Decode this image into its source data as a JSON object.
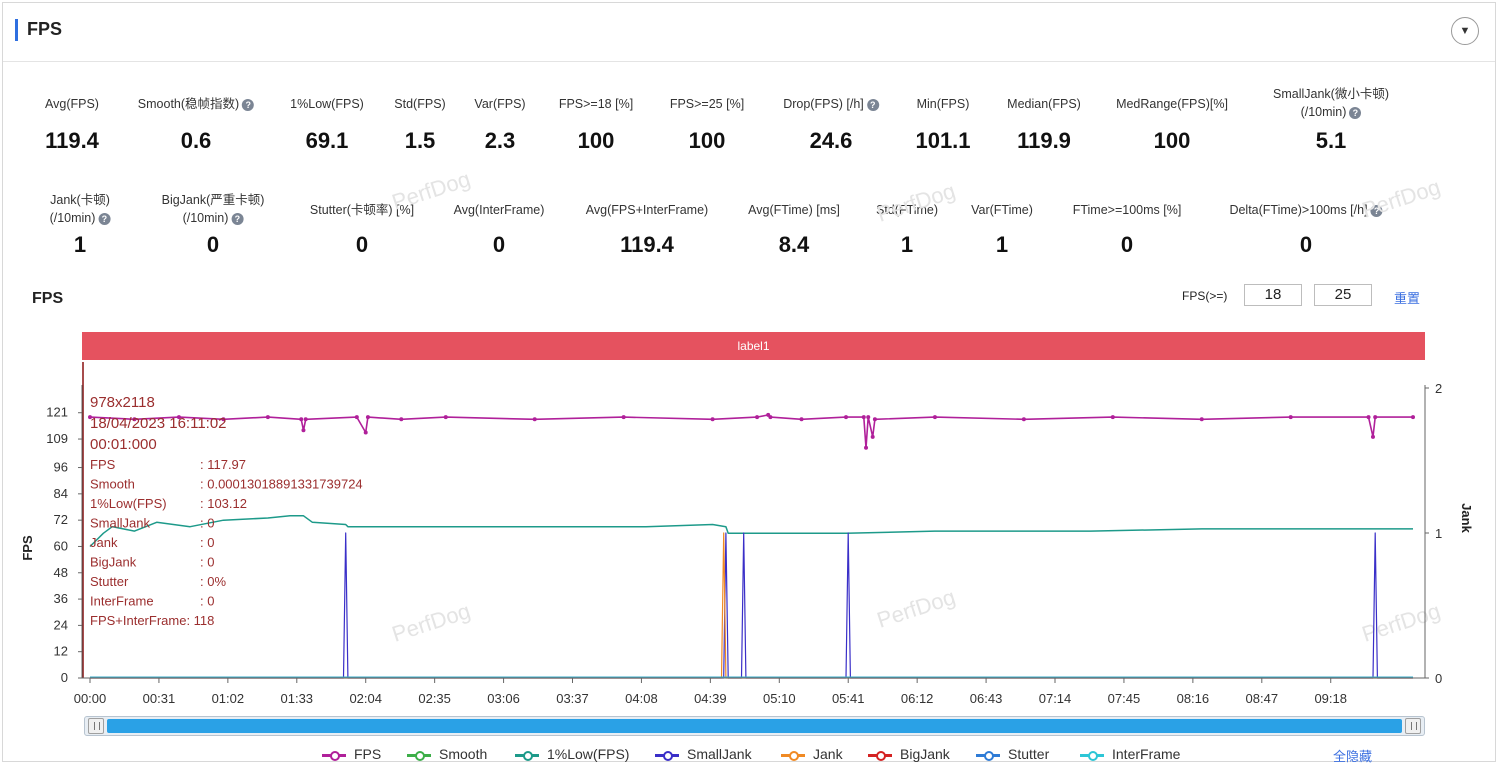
{
  "panel": {
    "title": "FPS",
    "collapse_icon": "▼"
  },
  "metrics_row1": [
    {
      "label": "Avg(FPS)",
      "value": "119.4",
      "help": false
    },
    {
      "label": "Smooth(稳帧指数)",
      "value": "0.6",
      "help": true
    },
    {
      "label": "1%Low(FPS)",
      "value": "69.1",
      "help": false
    },
    {
      "label": "Std(FPS)",
      "value": "1.5",
      "help": false
    },
    {
      "label": "Var(FPS)",
      "value": "2.3",
      "help": false
    },
    {
      "label": "FPS>=18 [%]",
      "value": "100",
      "help": false
    },
    {
      "label": "FPS>=25 [%]",
      "value": "100",
      "help": false
    },
    {
      "label": "Drop(FPS) [/h]",
      "value": "24.6",
      "help": true
    },
    {
      "label": "Min(FPS)",
      "value": "101.1",
      "help": false
    },
    {
      "label": "Median(FPS)",
      "value": "119.9",
      "help": false
    },
    {
      "label": "MedRange(FPS)[%]",
      "value": "100",
      "help": false
    },
    {
      "label": "SmallJank(微小卡顿)",
      "label2": "(/10min)",
      "value": "5.1",
      "help": true
    }
  ],
  "metrics_row2": [
    {
      "label": "Jank(卡顿)",
      "label2": "(/10min)",
      "value": "1",
      "help": true
    },
    {
      "label": "BigJank(严重卡顿)",
      "label2": "(/10min)",
      "value": "0",
      "help": true
    },
    {
      "label": "Stutter(卡顿率) [%]",
      "value": "0",
      "help": false
    },
    {
      "label": "Avg(InterFrame)",
      "value": "0",
      "help": false
    },
    {
      "label": "Avg(FPS+InterFrame)",
      "value": "119.4",
      "help": false
    },
    {
      "label": "Avg(FTime) [ms]",
      "value": "8.4",
      "help": false
    },
    {
      "label": "Std(FTime)",
      "value": "1",
      "help": false
    },
    {
      "label": "Var(FTime)",
      "value": "1",
      "help": false
    },
    {
      "label": "FTime>=100ms [%]",
      "value": "0",
      "help": false
    },
    {
      "label": "Delta(FTime)>100ms [/h]",
      "value": "0",
      "help": true
    }
  ],
  "chart_header": {
    "title": "FPS",
    "threshold_label": "FPS(>=)",
    "threshold_1": "18",
    "threshold_2": "25",
    "reset_label": "重置"
  },
  "label_band": "label1",
  "watermark": "PerfDog",
  "tooltip": {
    "resolution": "978x2118",
    "date": "18/04/2023 16:11:02",
    "elapsed": "00:01:000",
    "rows": [
      {
        "k": "FPS",
        "v": ": 117.97"
      },
      {
        "k": "Smooth",
        "v": ": 0.00013018891331739724"
      },
      {
        "k": "1%Low(FPS)",
        "v": ": 103.12"
      },
      {
        "k": "SmallJank",
        "v": ": 0"
      },
      {
        "k": "Jank",
        "v": ": 0"
      },
      {
        "k": "BigJank",
        "v": ": 0"
      },
      {
        "k": "Stutter",
        "v": ": 0%"
      },
      {
        "k": "InterFrame",
        "v": ": 0"
      }
    ],
    "last_row": "FPS+InterFrame: 118"
  },
  "legend": [
    {
      "name": "FPS",
      "color": "#b0209a"
    },
    {
      "name": "Smooth",
      "color": "#3cae48"
    },
    {
      "name": "1%Low(FPS)",
      "color": "#1d9a8a"
    },
    {
      "name": "SmallJank",
      "color": "#3a2fc8"
    },
    {
      "name": "Jank",
      "color": "#f08a24"
    },
    {
      "name": "BigJank",
      "color": "#d42222"
    },
    {
      "name": "Stutter",
      "color": "#2e7bd6"
    },
    {
      "name": "InterFrame",
      "color": "#2dc6d6"
    }
  ],
  "hide_all_label": "全隐藏",
  "chart_data": {
    "type": "line",
    "xlabel": "",
    "ylabel": "FPS",
    "y2label": "Jank",
    "x_ticks": [
      "00:00",
      "00:31",
      "01:02",
      "01:33",
      "02:04",
      "02:35",
      "03:06",
      "03:37",
      "04:08",
      "04:39",
      "05:10",
      "05:41",
      "06:12",
      "06:43",
      "07:14",
      "07:45",
      "08:16",
      "08:47",
      "09:18"
    ],
    "y_ticks": [
      0,
      12,
      24,
      36,
      48,
      60,
      72,
      84,
      96,
      109,
      121
    ],
    "y2_ticks": [
      0,
      1,
      2
    ],
    "ylim": [
      0,
      130
    ],
    "y2lim": [
      0,
      2
    ],
    "xlim_seconds": [
      0,
      595
    ],
    "series": [
      {
        "name": "FPS",
        "points": [
          [
            0,
            119
          ],
          [
            20,
            118
          ],
          [
            40,
            119
          ],
          [
            60,
            118
          ],
          [
            80,
            119
          ],
          [
            95,
            118
          ],
          [
            96,
            113
          ],
          [
            97,
            118
          ],
          [
            120,
            119
          ],
          [
            124,
            112
          ],
          [
            125,
            119
          ],
          [
            140,
            118
          ],
          [
            160,
            119
          ],
          [
            200,
            118
          ],
          [
            240,
            119
          ],
          [
            280,
            118
          ],
          [
            300,
            119
          ],
          [
            305,
            120
          ],
          [
            306,
            119
          ],
          [
            320,
            118
          ],
          [
            340,
            119
          ],
          [
            348,
            119
          ],
          [
            349,
            105
          ],
          [
            350,
            119
          ],
          [
            352,
            110
          ],
          [
            353,
            118
          ],
          [
            380,
            119
          ],
          [
            420,
            118
          ],
          [
            460,
            119
          ],
          [
            500,
            118
          ],
          [
            540,
            119
          ],
          [
            575,
            119
          ],
          [
            577,
            110
          ],
          [
            578,
            119
          ],
          [
            595,
            119
          ]
        ]
      },
      {
        "name": "1%Low(FPS)",
        "points": [
          [
            0,
            60
          ],
          [
            3,
            63
          ],
          [
            6,
            66
          ],
          [
            10,
            69
          ],
          [
            20,
            67
          ],
          [
            30,
            71
          ],
          [
            45,
            69
          ],
          [
            60,
            72
          ],
          [
            80,
            73
          ],
          [
            90,
            74
          ],
          [
            96,
            74
          ],
          [
            100,
            71
          ],
          [
            115,
            70
          ],
          [
            116,
            69
          ],
          [
            150,
            69
          ],
          [
            200,
            69
          ],
          [
            250,
            69
          ],
          [
            280,
            70
          ],
          [
            286,
            69
          ],
          [
            287,
            66
          ],
          [
            300,
            66
          ],
          [
            340,
            66
          ],
          [
            380,
            67
          ],
          [
            450,
            67
          ],
          [
            500,
            68
          ],
          [
            550,
            68
          ],
          [
            580,
            68
          ],
          [
            595,
            68
          ]
        ]
      },
      {
        "name": "SmallJank",
        "points": [
          [
            0,
            0
          ],
          [
            114,
            0
          ],
          [
            115,
            1
          ],
          [
            116,
            0
          ],
          [
            285,
            0
          ],
          [
            286,
            1
          ],
          [
            287,
            0
          ],
          [
            293,
            0
          ],
          [
            294,
            1
          ],
          [
            295,
            0
          ],
          [
            340,
            0
          ],
          [
            341,
            1
          ],
          [
            342,
            0
          ],
          [
            577,
            0
          ],
          [
            578,
            1
          ],
          [
            579,
            0
          ],
          [
            595,
            0
          ]
        ]
      },
      {
        "name": "Jank",
        "points": [
          [
            0,
            0
          ],
          [
            284,
            0
          ],
          [
            285,
            1
          ],
          [
            286,
            0
          ],
          [
            595,
            0
          ]
        ]
      }
    ]
  }
}
